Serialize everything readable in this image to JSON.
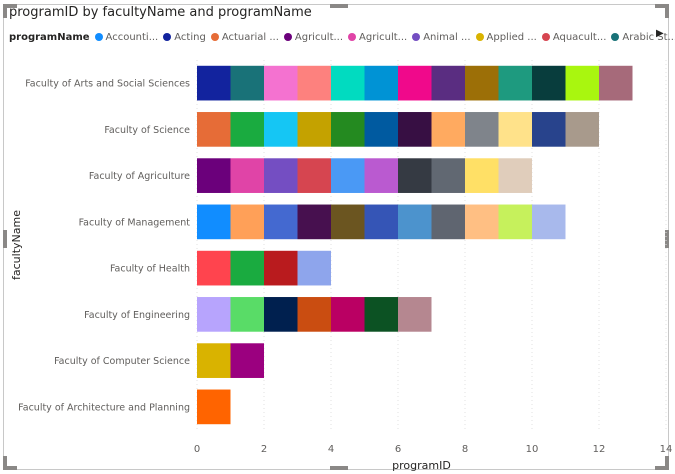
{
  "chart_data": {
    "type": "bar",
    "orientation": "horizontal",
    "stacked": true,
    "title": "programID by facultyName and programName",
    "xlabel": "programID",
    "ylabel": "facultyName",
    "xlim": [
      0,
      14
    ],
    "xticks": [
      "0",
      "2",
      "4",
      "6",
      "8",
      "10",
      "12",
      "14"
    ],
    "grid": true,
    "legend_title": "programName",
    "legend_placement": "top",
    "legend": [
      {
        "label": "Accounti...",
        "color": "#118DFF"
      },
      {
        "label": "Acting",
        "color": "#12239E"
      },
      {
        "label": "Actuarial ...",
        "color": "#E66C37"
      },
      {
        "label": "Agricult...",
        "color": "#6B007B"
      },
      {
        "label": "Agricult...",
        "color": "#E044A7"
      },
      {
        "label": "Animal ...",
        "color": "#744EC2"
      },
      {
        "label": "Applied ...",
        "color": "#D9B300"
      },
      {
        "label": "Aquacult...",
        "color": "#D64550"
      },
      {
        "label": "Arabic St...",
        "color": "#197278"
      }
    ],
    "categories": [
      "Faculty of Arts and Social Sciences",
      "Faculty of Science",
      "Faculty of Agriculture",
      "Faculty of Management",
      "Faculty of Health",
      "Faculty of Engineering",
      "Faculty of Computer Science",
      "Faculty of Architecture and Planning"
    ],
    "segments": [
      [
        "#12239E",
        "#197278",
        "#F472D0",
        "#FD817E",
        "#01DBC0",
        "#0093D5",
        "#F0098B",
        "#5A2D81",
        "#9C6F07",
        "#1E9A7F",
        "#083D3D",
        "#A9F60F",
        "#A66A7A"
      ],
      [
        "#E66C37",
        "#1AAB40",
        "#15C6F4",
        "#C4A200",
        "#248A20",
        "#005AA0",
        "#370F43",
        "#FFAA60",
        "#7F848B",
        "#FFE28A",
        "#28438C",
        "#A89A8C"
      ],
      [
        "#6B007B",
        "#E044A7",
        "#744EC2",
        "#D64550",
        "#4A99F5",
        "#BA5AD0",
        "#353A43",
        "#616872",
        "#FFE066",
        "#E0CDBB"
      ],
      [
        "#118DFF",
        "#FFA058",
        "#4469D0",
        "#47104F",
        "#6B5520",
        "#3555B6",
        "#4C93CD",
        "#5F6570",
        "#FFBF83",
        "#C6F15C",
        "#A8B9EC"
      ],
      [
        "#FF444E",
        "#1AAB40",
        "#B91B1E",
        "#8EA5EC"
      ],
      [
        "#B7A4FD",
        "#59DC67",
        "#00204F",
        "#CA4D11",
        "#BA0063",
        "#0C5223",
        "#B58790"
      ],
      [
        "#D9B300",
        "#9B007F"
      ],
      [
        "#FF6400"
      ]
    ]
  }
}
